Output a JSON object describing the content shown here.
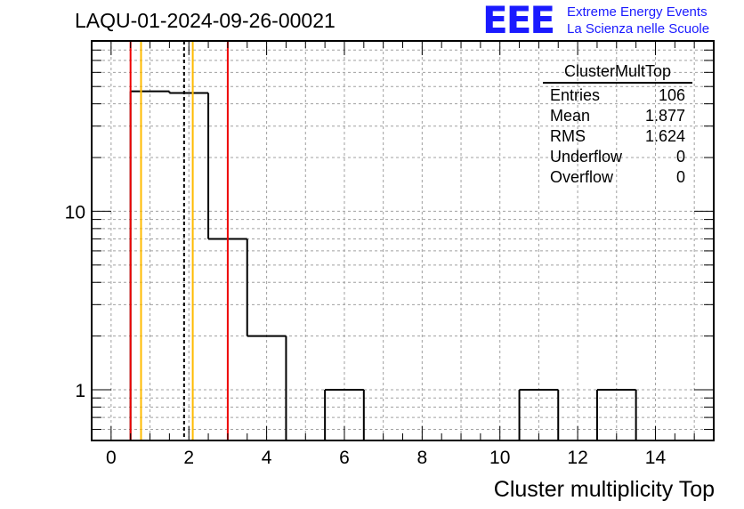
{
  "header": {
    "title": "LAQU-01-2024-09-26-00021",
    "logo": "EEE",
    "logo_line1": "Extreme Energy Events",
    "logo_line2": "La Scienza nelle Scuole"
  },
  "stats": {
    "title": "ClusterMultTop",
    "rows": [
      {
        "label": "Entries",
        "value": "106"
      },
      {
        "label": "Mean",
        "value": "1.877"
      },
      {
        "label": "RMS",
        "value": "1.624"
      },
      {
        "label": "Underflow",
        "value": "0"
      },
      {
        "label": "Overflow",
        "value": "0"
      }
    ]
  },
  "colors": {
    "histogram": "#000000",
    "red_line": "#ee0000",
    "orange_line": "#ffbb00",
    "mean_line": "#000000",
    "grid": "#a0a0a0"
  },
  "chart_data": {
    "type": "bar",
    "title": "LAQU-01-2024-09-26-00021",
    "xlabel": "Cluster multiplicity Top",
    "ylabel": "",
    "yscale": "log",
    "xlim": [
      -0.5,
      15.5
    ],
    "ylim": [
      0.52,
      90
    ],
    "bin_width": 1,
    "bin_centers": [
      1,
      2,
      3,
      4,
      5,
      6,
      7,
      8,
      9,
      10,
      11,
      12,
      13,
      14,
      15
    ],
    "values": [
      47,
      46,
      7,
      2,
      0,
      1,
      0,
      0,
      0,
      0,
      1,
      0,
      1,
      0,
      0
    ],
    "x_ticks": [
      0,
      2,
      4,
      6,
      8,
      10,
      12,
      14
    ],
    "y_ticks": [
      {
        "value": 1,
        "label": "1"
      },
      {
        "value": 10,
        "label": "10"
      }
    ],
    "vertical_lines": [
      {
        "x": 0.5,
        "color": "red",
        "style": "solid"
      },
      {
        "x": 0.77,
        "color": "orange",
        "style": "solid"
      },
      {
        "x": 1.877,
        "color": "black",
        "style": "dashed"
      },
      {
        "x": 2.1,
        "color": "orange",
        "style": "solid"
      },
      {
        "x": 3.0,
        "color": "red",
        "style": "solid"
      }
    ],
    "grid": true
  }
}
